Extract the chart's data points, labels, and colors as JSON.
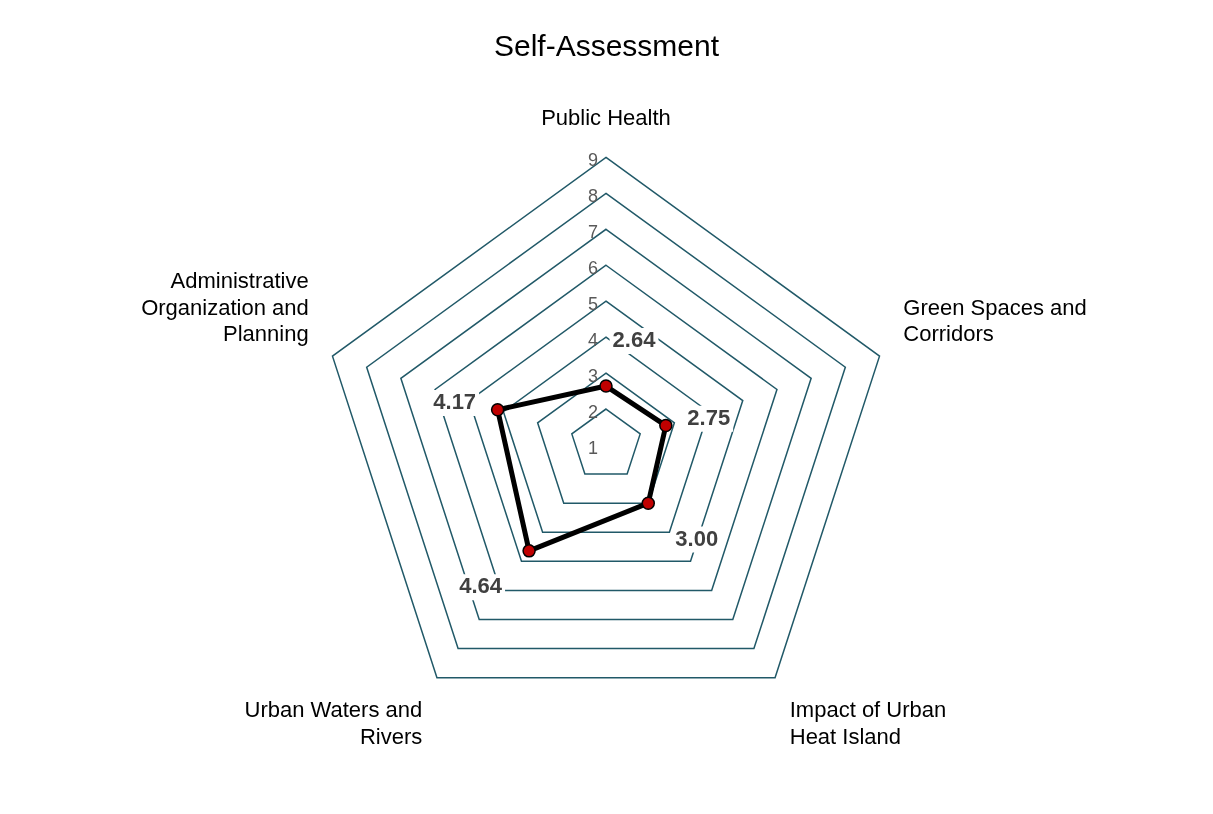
{
  "chart_data": {
    "type": "radar",
    "title": "Self-Assessment",
    "categories": [
      "Public Health",
      "Green Spaces and Corridors",
      "Impact of Urban Heat Island",
      "Urban Waters and Rivers",
      "Administrative Organization and Planning"
    ],
    "series": [
      {
        "color": "#000000",
        "values": [
          2.64,
          2.75,
          3.0,
          4.64,
          4.17
        ],
        "value_labels": [
          "2.64",
          "2.75",
          "3.00",
          "4.64",
          "4.17"
        ]
      }
    ],
    "ylim": [
      1,
      9
    ],
    "yticks": [
      1,
      2,
      3,
      4,
      5,
      6,
      7,
      8,
      9
    ],
    "grid": true,
    "marker": "circle",
    "line_style": "solid",
    "legend": false
  }
}
